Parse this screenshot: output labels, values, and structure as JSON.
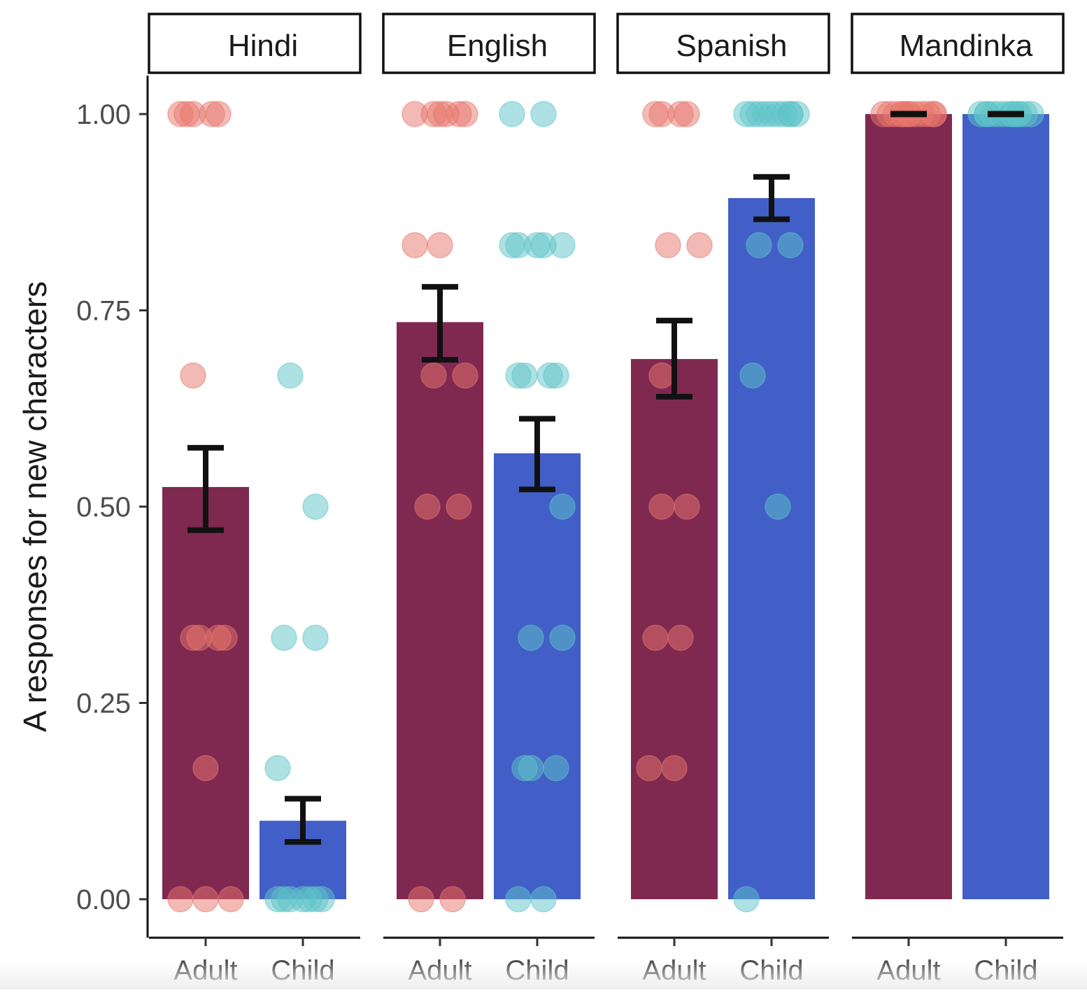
{
  "chart_data": {
    "type": "bar",
    "ylabel": "A responses for new characters",
    "ylim": [
      -0.05,
      1.05
    ],
    "y_ticks": [
      "0.00",
      "0.25",
      "0.50",
      "0.75",
      "1.00"
    ],
    "y_tick_values": [
      0,
      0.25,
      0.5,
      0.75,
      1.0
    ],
    "groups": [
      "Adult",
      "Child"
    ],
    "colors": {
      "Adult": {
        "bar": "#7f2950",
        "point": "#e8756c"
      },
      "Child": {
        "bar": "#425fc7",
        "point": "#5ec3c8"
      },
      "error": "#111111"
    },
    "panels": [
      {
        "label": "Hindi",
        "bars": [
          {
            "group": "Adult",
            "mean": 0.525,
            "se_low": 0.47,
            "se_high": 0.575,
            "points": [
              1.0,
              1.0,
              1.0,
              1.0,
              1.0,
              0.667,
              0.333,
              0.333,
              0.333,
              0.333,
              0.167,
              0.0,
              0.0,
              0.0
            ]
          },
          {
            "group": "Child",
            "mean": 0.1,
            "se_low": 0.073,
            "se_high": 0.128,
            "points": [
              0.667,
              0.5,
              0.333,
              0.333,
              0.167,
              0.0,
              0.0,
              0.0,
              0.0,
              0.0,
              0.0,
              0.0
            ]
          }
        ]
      },
      {
        "label": "English",
        "bars": [
          {
            "group": "Adult",
            "mean": 0.735,
            "se_low": 0.687,
            "se_high": 0.78,
            "points": [
              1.0,
              1.0,
              1.0,
              1.0,
              1.0,
              1.0,
              0.833,
              0.833,
              0.667,
              0.667,
              0.5,
              0.5,
              0.0,
              0.0
            ]
          },
          {
            "group": "Child",
            "mean": 0.568,
            "se_low": 0.522,
            "se_high": 0.612,
            "points": [
              1.0,
              1.0,
              0.833,
              0.833,
              0.833,
              0.833,
              0.833,
              0.667,
              0.667,
              0.667,
              0.667,
              0.5,
              0.333,
              0.333,
              0.167,
              0.167,
              0.167,
              0.0,
              0.0
            ]
          }
        ]
      },
      {
        "label": "Spanish",
        "bars": [
          {
            "group": "Adult",
            "mean": 0.688,
            "se_low": 0.64,
            "se_high": 0.737,
            "points": [
              1.0,
              1.0,
              1.0,
              1.0,
              0.833,
              0.833,
              0.667,
              0.5,
              0.5,
              0.333,
              0.333,
              0.167,
              0.167
            ]
          },
          {
            "group": "Child",
            "mean": 0.893,
            "se_low": 0.866,
            "se_high": 0.92,
            "points": [
              1.0,
              1.0,
              1.0,
              1.0,
              1.0,
              1.0,
              1.0,
              1.0,
              1.0,
              1.0,
              0.833,
              0.833,
              0.667,
              0.5,
              0.0
            ]
          }
        ]
      },
      {
        "label": "Mandinka",
        "bars": [
          {
            "group": "Adult",
            "mean": 1.0,
            "se_low": 1.0,
            "se_high": 1.0,
            "points": [
              1.0,
              1.0,
              1.0,
              1.0,
              1.0,
              1.0,
              1.0,
              1.0,
              1.0,
              1.0,
              1.0,
              1.0
            ]
          },
          {
            "group": "Child",
            "mean": 1.0,
            "se_low": 1.0,
            "se_high": 1.0,
            "points": [
              1.0,
              1.0,
              1.0,
              1.0,
              1.0,
              1.0,
              1.0,
              1.0,
              1.0,
              1.0,
              1.0,
              1.0
            ]
          }
        ]
      }
    ]
  }
}
